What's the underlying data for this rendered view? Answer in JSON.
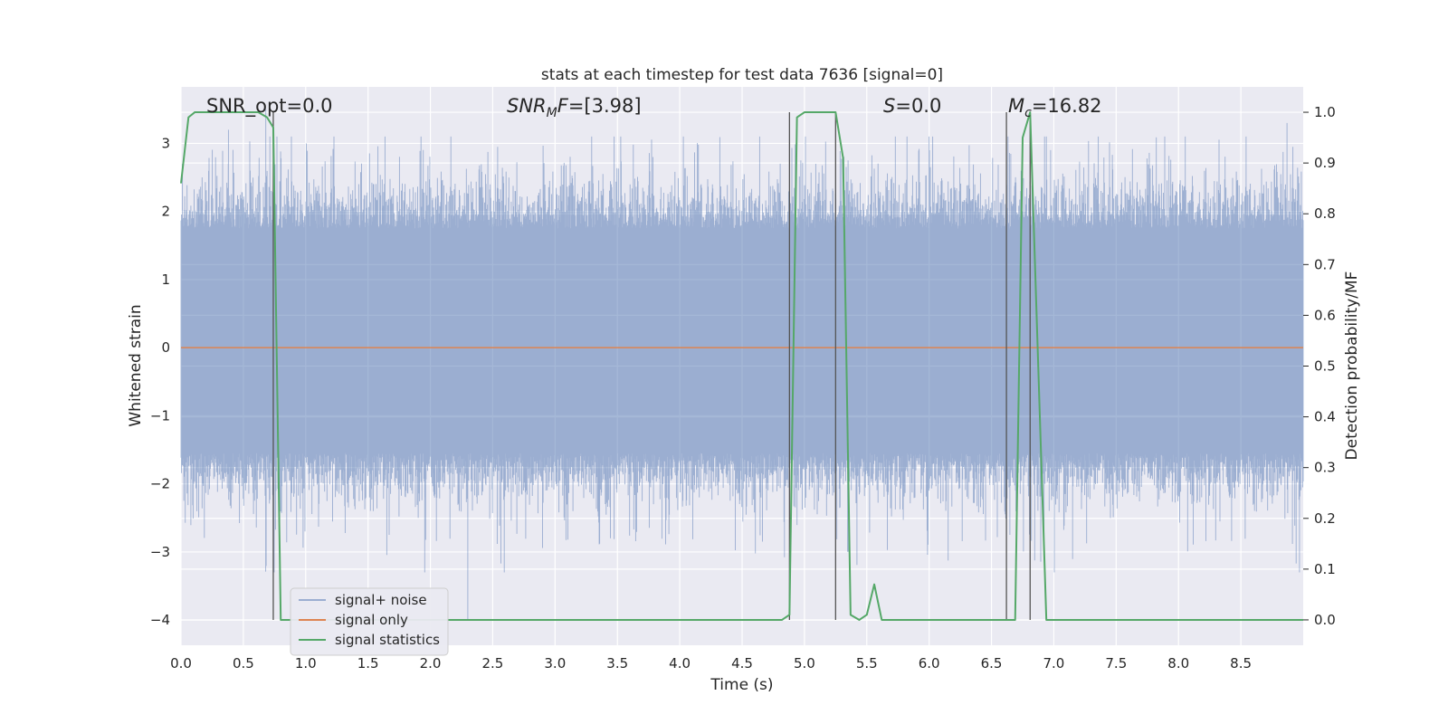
{
  "chart_data": {
    "type": "line",
    "title": "stats at each timestep for test data 7636 [signal=0]",
    "xlabel": "Time (s)",
    "ylabel_left": "Whitened strain",
    "ylabel_right": "Detection probability/MF",
    "xlim": [
      0.0,
      9.0
    ],
    "ylim_left": [
      -4.37,
      3.83
    ],
    "ylim_right": [
      -0.05,
      1.05
    ],
    "xticks": [
      "0.0",
      "0.5",
      "1.0",
      "1.5",
      "2.0",
      "2.5",
      "3.0",
      "3.5",
      "4.0",
      "4.5",
      "5.0",
      "5.5",
      "6.0",
      "6.5",
      "7.0",
      "7.5",
      "8.0",
      "8.5"
    ],
    "yticks_left": [
      "3",
      "2",
      "1",
      "0",
      "−1",
      "−2",
      "−3",
      "−4"
    ],
    "yticks_right": [
      "1.0",
      "0.9",
      "0.8",
      "0.7",
      "0.6",
      "0.5",
      "0.4",
      "0.3",
      "0.2",
      "0.1",
      "0.0"
    ],
    "grid": true,
    "legend_position": "lower-left",
    "colors": {
      "background": "#eaeaf2",
      "grid": "#ffffff",
      "noise": "#4c72b0",
      "signal": "#dd8452",
      "statistics": "#55a868",
      "vlines": "#555555"
    },
    "series": [
      {
        "name": "signal+ noise",
        "axis": "left",
        "description_values": "whitened noise, dense band between about -2 and 2, peaks reaching about 3.3 and -4.0",
        "envelope_typical": [
          -1.6,
          1.9
        ],
        "peaks": [
          {
            "x": 0.38,
            "y": 3.2
          },
          {
            "x": 0.68,
            "y": 3.5
          },
          {
            "x": 2.3,
            "y": -4.0
          },
          {
            "x": 8.87,
            "y": 3.3
          }
        ]
      },
      {
        "name": "signal only",
        "axis": "left",
        "x": [
          0.0,
          9.0
        ],
        "y": [
          0.0,
          0.0
        ]
      },
      {
        "name": "signal statistics",
        "axis": "right",
        "x": [
          0.0,
          0.06,
          0.11,
          0.5,
          0.62,
          0.69,
          0.74,
          0.8,
          0.85,
          4.82,
          4.88,
          4.94,
          5.0,
          5.19,
          5.25,
          5.31,
          5.37,
          5.44,
          5.5,
          5.56,
          5.62,
          6.62,
          6.69,
          6.75,
          6.81,
          6.94,
          9.0
        ],
        "y": [
          0.86,
          0.99,
          1.0,
          1.0,
          1.0,
          0.99,
          0.97,
          0.0,
          0.0,
          0.0,
          0.01,
          0.99,
          1.0,
          1.0,
          1.0,
          0.91,
          0.01,
          0.0,
          0.01,
          0.07,
          0.0,
          0.0,
          0.0,
          0.95,
          1.0,
          0.0,
          0.0
        ]
      }
    ],
    "vertical_lines": [
      {
        "x": 0.74,
        "from": 0.0,
        "to": 1.0
      },
      {
        "x": 4.88,
        "from": 0.0,
        "to": 1.0
      },
      {
        "x": 5.25,
        "from": 0.0,
        "to": 1.0
      },
      {
        "x": 6.62,
        "from": 0.0,
        "to": 1.0
      },
      {
        "x": 6.81,
        "from": 0.0,
        "to": 1.0
      }
    ],
    "annotations": [
      {
        "x": 0.19,
        "text": "SNR_opt=0.0"
      },
      {
        "x": 2.6,
        "text": "SNR_M F=[3.98]"
      },
      {
        "x": 5.6,
        "text": "S=0.0"
      },
      {
        "x": 6.6,
        "text": "M_c=16.82"
      }
    ]
  }
}
